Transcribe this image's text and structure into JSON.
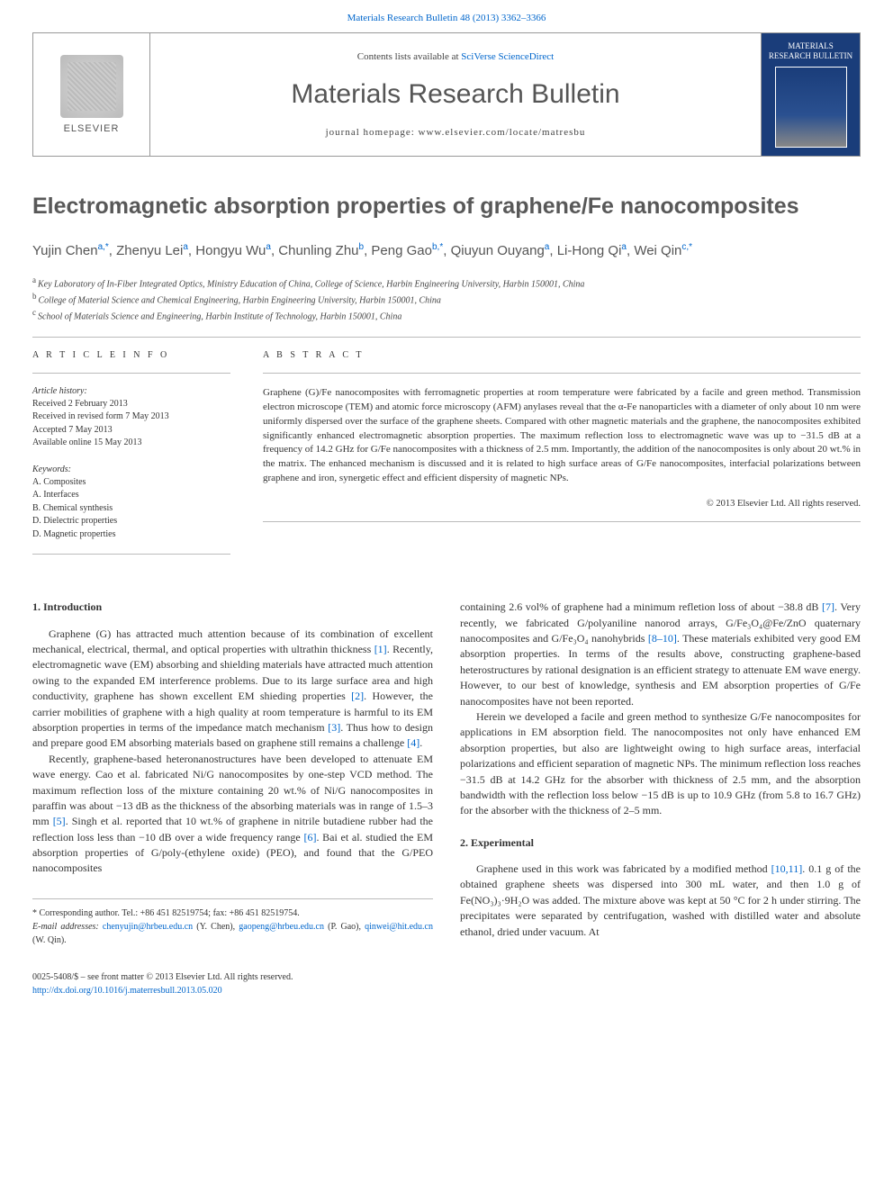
{
  "header": {
    "citation": "Materials Research Bulletin 48 (2013) 3362–3366",
    "contents_prefix": "Contents lists available at ",
    "contents_link": "SciVerse ScienceDirect",
    "journal_name": "Materials Research Bulletin",
    "homepage_prefix": "journal homepage: ",
    "homepage_url": "www.elsevier.com/locate/matresbu",
    "publisher": "ELSEVIER",
    "cover_title": "MATERIALS RESEARCH BULLETIN"
  },
  "article": {
    "title": "Electromagnetic absorption properties of graphene/Fe nanocomposites",
    "authors_html": "Yujin Chen",
    "authors": [
      {
        "name": "Yujin Chen",
        "sup": "a,*"
      },
      {
        "name": "Zhenyu Lei",
        "sup": "a"
      },
      {
        "name": "Hongyu Wu",
        "sup": "a"
      },
      {
        "name": "Chunling Zhu",
        "sup": "b"
      },
      {
        "name": "Peng Gao",
        "sup": "b,*"
      },
      {
        "name": "Qiuyun Ouyang",
        "sup": "a"
      },
      {
        "name": "Li-Hong Qi",
        "sup": "a"
      },
      {
        "name": "Wei Qin",
        "sup": "c,*"
      }
    ],
    "affiliations": [
      {
        "sup": "a",
        "text": "Key Laboratory of In-Fiber Integrated Optics, Ministry Education of China, College of Science, Harbin Engineering University, Harbin 150001, China"
      },
      {
        "sup": "b",
        "text": "College of Material Science and Chemical Engineering, Harbin Engineering University, Harbin 150001, China"
      },
      {
        "sup": "c",
        "text": "School of Materials Science and Engineering, Harbin Institute of Technology, Harbin 150001, China"
      }
    ]
  },
  "info": {
    "heading": "A R T I C L E   I N F O",
    "history_label": "Article history:",
    "history": [
      "Received 2 February 2013",
      "Received in revised form 7 May 2013",
      "Accepted 7 May 2013",
      "Available online 15 May 2013"
    ],
    "keywords_label": "Keywords:",
    "keywords": [
      "A. Composites",
      "A. Interfaces",
      "B. Chemical synthesis",
      "D. Dielectric properties",
      "D. Magnetic properties"
    ]
  },
  "abstract": {
    "heading": "A B S T R A C T",
    "text": "Graphene (G)/Fe nanocomposites with ferromagnetic properties at room temperature were fabricated by a facile and green method. Transmission electron microscope (TEM) and atomic force microscopy (AFM) anylases reveal that the α-Fe nanoparticles with a diameter of only about 10 nm were uniformly dispersed over the surface of the graphene sheets. Compared with other magnetic materials and the graphene, the nanocomposites exhibited significantly enhanced electromagnetic absorption properties. The maximum reflection loss to electromagnetic wave was up to −31.5 dB at a frequency of 14.2 GHz for G/Fe nanocomposites with a thickness of 2.5 mm. Importantly, the addition of the nanocomposites is only about 20 wt.% in the matrix. The enhanced mechanism is discussed and it is related to high surface areas of G/Fe nanocomposites, interfacial polarizations between graphene and iron, synergetic effect and efficient dispersity of magnetic NPs.",
    "copyright": "© 2013 Elsevier Ltd. All rights reserved."
  },
  "body": {
    "section1_heading": "1.  Introduction",
    "section1_p1": "Graphene (G) has attracted much attention because of its combination of excellent mechanical, electrical, thermal, and optical properties with ultrathin thickness [1]. Recently, electromagnetic wave (EM) absorbing and shielding materials have attracted much attention owing to the expanded EM interference problems. Due to its large surface area and high conductivity, graphene has shown excellent EM shieding properties [2]. However, the carrier mobilities of graphene with a high quality at room temperature is harmful to its EM absorption properties in terms of the impedance match mechanism [3]. Thus how to design and prepare good EM absorbing materials based on graphene still remains a challenge [4].",
    "section1_p2": "Recently, graphene-based heteronanostructures have been developed to attenuate EM wave energy. Cao et al. fabricated Ni/G nanocomposites by one-step VCD method. The maximum reflection loss of the mixture containing 20 wt.% of Ni/G nanocomposites in paraffin was about −13 dB as the thickness of the absorbing materials was in range of 1.5–3 mm [5]. Singh et al. reported that 10 wt.% of graphene in nitrile butadiene rubber had the reflection loss less than −10 dB over a wide frequency range [6]. Bai et al. studied the EM absorption properties of G/poly-(ethylene oxide) (PEO), and found that the G/PEO nanocomposites",
    "section1_p3": "containing 2.6 vol% of graphene had a minimum refletion loss of about −38.8 dB [7]. Very recently, we fabricated G/polyaniline nanorod arrays, G/Fe₃O₄@Fe/ZnO quaternary nanocomposites and G/Fe₃O₄ nanohybrids [8–10]. These materials exhibited very good EM absorption properties. In terms of the results above, constructing graphene-based heterostructures by rational designation is an efficient strategy to attenuate EM wave energy. However, to our best of knowledge, synthesis and EM absorption properties of G/Fe nanocomposites have not been reported.",
    "section1_p4": "Herein we developed a facile and green method to synthesize G/Fe nanocomposites for applications in EM absorption field. The nanocomposites not only have enhanced EM absorption properties, but also are lightweight owing to high surface areas, interfacial polarizations and efficient separation of magnetic NPs. The minimum reflection loss reaches −31.5 dB at 14.2 GHz for the absorber with thickness of 2.5 mm, and the absorption bandwidth with the reflection loss below −15 dB is up to 10.9 GHz (from 5.8 to 16.7 GHz) for the absorber with the thickness of 2–5 mm.",
    "section2_heading": "2.  Experimental",
    "section2_p1": "Graphene used in this work was fabricated by a modified method [10,11]. 0.1 g of the obtained graphene sheets was dispersed into 300 mL water, and then 1.0 g of Fe(NO₃)₃·9H₂O was added. The mixture above was kept at 50 °C for 2 h under stirring. The precipitates were separated by centrifugation, washed with distilled water and absolute ethanol, dried under vacuum. At"
  },
  "corr": {
    "label": "* Corresponding author. Tel.: +86 451 82519754; fax: +86 451 82519754.",
    "email_label": "E-mail addresses: ",
    "emails": [
      {
        "addr": "chenyujin@hrbeu.edu.cn",
        "who": "(Y. Chen)"
      },
      {
        "addr": "gaopeng@hrbeu.edu.cn",
        "who": "(P. Gao)"
      },
      {
        "addr": "qinwei@hit.edu.cn",
        "who": "(W. Qin)"
      }
    ]
  },
  "footer": {
    "issn": "0025-5408/$ – see front matter © 2013 Elsevier Ltd. All rights reserved.",
    "doi": "http://dx.doi.org/10.1016/j.materresbull.2013.05.020"
  },
  "colors": {
    "link": "#0066cc",
    "text": "#333333",
    "heading": "#585858",
    "rule": "#bbbbbb",
    "cover_bg": "#1a3d7a"
  }
}
